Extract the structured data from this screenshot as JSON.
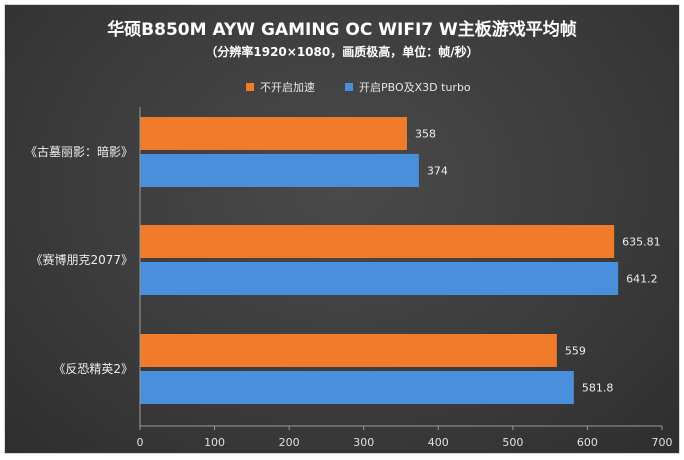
{
  "chart_data": {
    "type": "bar",
    "orientation": "horizontal",
    "title": "华硕B850M AYW GAMING OC WIFI7 W主板游戏平均帧",
    "subtitle": "（分辨率1920×1080，画质极高，单位：帧/秒）",
    "categories": [
      "《古墓丽影：暗影》",
      "《赛博朋克2077》",
      "《反恐精英2》"
    ],
    "series": [
      {
        "name": "不开启加速",
        "values": [
          358,
          635.81,
          559
        ],
        "labels": [
          "358",
          "635.81",
          "559"
        ],
        "color": "#f07b2a"
      },
      {
        "name": "开启PBO及X3D turbo",
        "values": [
          374,
          641.2,
          581.8
        ],
        "labels": [
          "374",
          "641.2",
          "581.8"
        ],
        "color": "#4a8fdc"
      }
    ],
    "xlim": [
      0,
      700
    ],
    "xticks": [
      "0",
      "100",
      "200",
      "300",
      "400",
      "500",
      "600",
      "700"
    ],
    "legend_position": "top-center",
    "grid": false
  }
}
